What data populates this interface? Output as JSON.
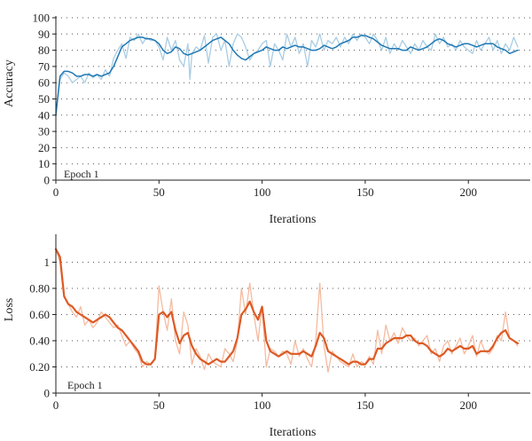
{
  "chart_data": [
    {
      "type": "line",
      "ylabel": "Accuracy",
      "xlabel": "Iterations",
      "annotation": "Epoch 1",
      "xlim": [
        0,
        230
      ],
      "ylim": [
        0,
        100
      ],
      "xticks": [
        0,
        50,
        100,
        150,
        200
      ],
      "xtick_labels": [
        "0",
        "50",
        "100",
        "150",
        "200"
      ],
      "yticks": [
        0,
        10,
        20,
        30,
        40,
        50,
        60,
        70,
        80,
        90,
        100
      ],
      "ytick_labels": [
        "0",
        "10",
        "20",
        "30",
        "40",
        "50",
        "60",
        "70",
        "80",
        "90",
        "100"
      ],
      "grid": "dotted horizontal",
      "colors": {
        "raw": "#a9cde3",
        "smoothed": "#1f78b4"
      },
      "series": [
        {
          "role": "raw",
          "x": [
            0,
            2,
            4,
            6,
            8,
            10,
            12,
            14,
            16,
            18,
            20,
            22,
            24,
            26,
            28,
            30,
            32,
            34,
            36,
            38,
            40,
            42,
            44,
            46,
            48,
            50,
            52,
            54,
            56,
            58,
            60,
            62,
            64,
            65,
            66,
            68,
            70,
            72,
            74,
            76,
            78,
            80,
            82,
            84,
            86,
            88,
            90,
            92,
            94,
            96,
            98,
            100,
            102,
            104,
            106,
            108,
            110,
            112,
            114,
            116,
            118,
            120,
            122,
            124,
            126,
            128,
            130,
            132,
            134,
            136,
            138,
            140,
            142,
            144,
            146,
            148,
            150,
            152,
            154,
            156,
            158,
            160,
            162,
            164,
            166,
            168,
            170,
            172,
            174,
            176,
            178,
            180,
            182,
            184,
            186,
            188,
            190,
            192,
            194,
            196,
            198,
            200,
            202,
            204,
            206,
            208,
            210,
            212,
            214,
            216,
            218,
            220,
            222,
            224
          ],
          "y": [
            42,
            62,
            66,
            64,
            60,
            62,
            64,
            60,
            66,
            63,
            65,
            62,
            68,
            64,
            75,
            80,
            84,
            75,
            88,
            86,
            90,
            84,
            88,
            86,
            86,
            82,
            74,
            88,
            80,
            86,
            74,
            70,
            84,
            62,
            78,
            82,
            80,
            89,
            72,
            88,
            90,
            80,
            86,
            70,
            84,
            90,
            88,
            82,
            74,
            78,
            80,
            84,
            86,
            70,
            84,
            80,
            74,
            90,
            82,
            88,
            78,
            84,
            70,
            86,
            82,
            90,
            80,
            86,
            84,
            88,
            82,
            88,
            84,
            90,
            86,
            90,
            88,
            84,
            90,
            86,
            80,
            88,
            78,
            84,
            80,
            86,
            82,
            78,
            84,
            80,
            86,
            82,
            80,
            90,
            84,
            88,
            82,
            84,
            80,
            86,
            82,
            80,
            78,
            86,
            80,
            84,
            88,
            80,
            86,
            78,
            84,
            80,
            88,
            82
          ]
        },
        {
          "role": "smoothed",
          "x": [
            0,
            2,
            4,
            6,
            8,
            10,
            12,
            14,
            16,
            18,
            20,
            22,
            24,
            26,
            28,
            30,
            32,
            34,
            36,
            38,
            40,
            42,
            44,
            46,
            48,
            50,
            52,
            54,
            56,
            58,
            60,
            62,
            64,
            66,
            68,
            70,
            72,
            74,
            76,
            78,
            80,
            82,
            84,
            86,
            88,
            90,
            92,
            94,
            96,
            98,
            100,
            102,
            104,
            106,
            108,
            110,
            112,
            114,
            116,
            118,
            120,
            122,
            124,
            126,
            128,
            130,
            132,
            134,
            136,
            138,
            140,
            142,
            144,
            146,
            148,
            150,
            152,
            154,
            156,
            158,
            160,
            162,
            164,
            166,
            168,
            170,
            172,
            174,
            176,
            178,
            180,
            182,
            184,
            186,
            188,
            190,
            192,
            194,
            196,
            198,
            200,
            202,
            204,
            206,
            208,
            210,
            212,
            214,
            216,
            218,
            220,
            222,
            224
          ],
          "y": [
            40,
            64,
            67,
            67,
            66,
            64,
            64,
            65,
            65,
            64,
            65,
            64,
            65,
            66,
            70,
            76,
            82,
            84,
            86,
            87,
            88,
            88,
            87,
            87,
            86,
            84,
            80,
            78,
            79,
            82,
            81,
            78,
            77,
            78,
            79,
            80,
            82,
            84,
            86,
            87,
            88,
            86,
            84,
            80,
            77,
            75,
            74,
            76,
            78,
            79,
            80,
            82,
            81,
            80,
            80,
            82,
            81,
            82,
            83,
            82,
            82,
            81,
            80,
            80,
            81,
            83,
            82,
            81,
            82,
            84,
            85,
            86,
            88,
            88,
            89,
            89,
            88,
            87,
            85,
            83,
            82,
            81,
            81,
            81,
            80,
            80,
            82,
            81,
            80,
            81,
            82,
            84,
            86,
            87,
            86,
            84,
            83,
            82,
            83,
            84,
            84,
            83,
            82,
            83,
            84,
            84,
            84,
            82,
            81,
            80,
            78,
            79,
            80
          ]
        }
      ]
    },
    {
      "type": "line",
      "ylabel": "Loss",
      "xlabel": "Iterations",
      "annotation": "Epoch 1",
      "xlim": [
        0,
        230
      ],
      "ylim": [
        0,
        1.2
      ],
      "xticks": [
        0,
        50,
        100,
        150,
        200
      ],
      "xtick_labels": [
        "0",
        "50",
        "100",
        "150",
        "200"
      ],
      "yticks": [
        0,
        0.2,
        0.4,
        0.6,
        0.8,
        1.0
      ],
      "ytick_labels": [
        "0",
        "0.20",
        "0.40",
        "0.60",
        "0.80",
        "1"
      ],
      "grid": "dotted horizontal",
      "colors": {
        "raw": "#f4bba0",
        "smoothed": "#dd5a24"
      },
      "series": [
        {
          "role": "raw",
          "x": [
            0,
            2,
            4,
            6,
            8,
            10,
            12,
            14,
            16,
            18,
            20,
            22,
            24,
            26,
            28,
            30,
            32,
            34,
            36,
            38,
            40,
            42,
            44,
            46,
            48,
            50,
            52,
            54,
            56,
            58,
            60,
            62,
            64,
            66,
            68,
            70,
            72,
            74,
            76,
            78,
            80,
            82,
            84,
            86,
            88,
            90,
            92,
            94,
            96,
            98,
            100,
            102,
            104,
            106,
            108,
            110,
            112,
            114,
            116,
            118,
            120,
            122,
            124,
            126,
            128,
            130,
            132,
            134,
            136,
            138,
            140,
            142,
            144,
            146,
            148,
            150,
            152,
            154,
            156,
            158,
            160,
            162,
            164,
            166,
            168,
            170,
            172,
            174,
            176,
            178,
            180,
            182,
            184,
            186,
            188,
            190,
            192,
            194,
            196,
            198,
            200,
            202,
            204,
            206,
            208,
            210,
            212,
            214,
            216,
            218,
            220,
            222,
            224
          ],
          "y": [
            1.1,
            1.0,
            0.74,
            0.68,
            0.62,
            0.58,
            0.66,
            0.52,
            0.56,
            0.5,
            0.54,
            0.62,
            0.58,
            0.54,
            0.5,
            0.52,
            0.44,
            0.36,
            0.4,
            0.34,
            0.3,
            0.2,
            0.24,
            0.22,
            0.26,
            0.82,
            0.62,
            0.48,
            0.72,
            0.4,
            0.3,
            0.62,
            0.52,
            0.22,
            0.34,
            0.28,
            0.18,
            0.3,
            0.24,
            0.22,
            0.2,
            0.34,
            0.3,
            0.24,
            0.4,
            0.8,
            0.6,
            0.84,
            0.6,
            0.4,
            0.66,
            0.2,
            0.34,
            0.32,
            0.28,
            0.32,
            0.3,
            0.22,
            0.4,
            0.28,
            0.34,
            0.26,
            0.2,
            0.4,
            0.84,
            0.36,
            0.16,
            0.32,
            0.28,
            0.24,
            0.22,
            0.2,
            0.3,
            0.2,
            0.24,
            0.22,
            0.28,
            0.22,
            0.48,
            0.3,
            0.52,
            0.4,
            0.46,
            0.38,
            0.5,
            0.44,
            0.4,
            0.42,
            0.36,
            0.4,
            0.44,
            0.3,
            0.34,
            0.24,
            0.36,
            0.4,
            0.3,
            0.36,
            0.42,
            0.3,
            0.36,
            0.44,
            0.28,
            0.4,
            0.32,
            0.3,
            0.34,
            0.44,
            0.4,
            0.62,
            0.42,
            0.4,
            0.36
          ]
        },
        {
          "role": "smoothed",
          "x": [
            0,
            2,
            4,
            6,
            8,
            10,
            12,
            14,
            16,
            18,
            20,
            22,
            24,
            26,
            28,
            30,
            32,
            34,
            36,
            38,
            40,
            42,
            44,
            46,
            48,
            50,
            52,
            54,
            56,
            58,
            60,
            62,
            64,
            66,
            68,
            70,
            72,
            74,
            76,
            78,
            80,
            82,
            84,
            86,
            88,
            90,
            92,
            94,
            96,
            98,
            100,
            102,
            104,
            106,
            108,
            110,
            112,
            114,
            116,
            118,
            120,
            122,
            124,
            126,
            128,
            130,
            132,
            134,
            136,
            138,
            140,
            142,
            144,
            146,
            148,
            150,
            152,
            154,
            156,
            158,
            160,
            162,
            164,
            166,
            168,
            170,
            172,
            174,
            176,
            178,
            180,
            182,
            184,
            186,
            188,
            190,
            192,
            194,
            196,
            198,
            200,
            202,
            204,
            206,
            208,
            210,
            212,
            214,
            216,
            218,
            220,
            222,
            224
          ],
          "y": [
            1.1,
            1.04,
            0.74,
            0.68,
            0.66,
            0.62,
            0.6,
            0.58,
            0.56,
            0.54,
            0.56,
            0.58,
            0.6,
            0.58,
            0.54,
            0.5,
            0.48,
            0.44,
            0.4,
            0.36,
            0.32,
            0.24,
            0.22,
            0.22,
            0.26,
            0.6,
            0.62,
            0.58,
            0.62,
            0.48,
            0.38,
            0.44,
            0.46,
            0.36,
            0.3,
            0.26,
            0.24,
            0.22,
            0.24,
            0.26,
            0.24,
            0.24,
            0.28,
            0.32,
            0.42,
            0.6,
            0.64,
            0.7,
            0.62,
            0.56,
            0.66,
            0.4,
            0.32,
            0.3,
            0.28,
            0.3,
            0.32,
            0.3,
            0.3,
            0.3,
            0.32,
            0.3,
            0.28,
            0.36,
            0.46,
            0.42,
            0.32,
            0.3,
            0.28,
            0.26,
            0.24,
            0.22,
            0.24,
            0.24,
            0.22,
            0.22,
            0.26,
            0.26,
            0.34,
            0.34,
            0.38,
            0.4,
            0.42,
            0.42,
            0.42,
            0.44,
            0.44,
            0.4,
            0.38,
            0.38,
            0.36,
            0.32,
            0.3,
            0.28,
            0.3,
            0.34,
            0.32,
            0.34,
            0.36,
            0.34,
            0.34,
            0.36,
            0.3,
            0.32,
            0.32,
            0.32,
            0.36,
            0.42,
            0.46,
            0.48,
            0.42,
            0.4,
            0.38
          ]
        }
      ]
    }
  ]
}
